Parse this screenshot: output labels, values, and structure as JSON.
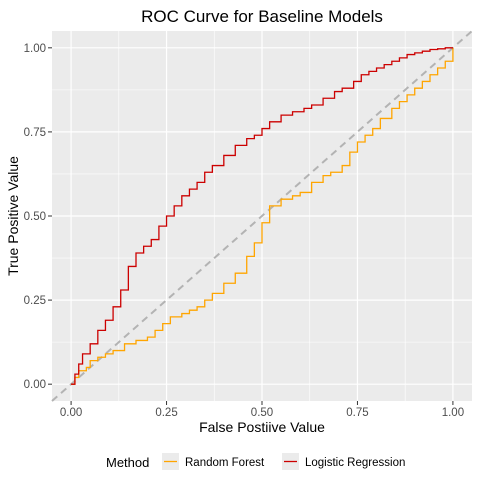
{
  "chart_data": {
    "type": "line",
    "title": "ROC Curve for Baseline Models",
    "xlabel": "False Postiive Value",
    "ylabel": "True Positive Value",
    "xlim": [
      -0.05,
      1.05
    ],
    "ylim": [
      -0.05,
      1.05
    ],
    "x_ticks": [
      0,
      0.25,
      0.5,
      0.75,
      1
    ],
    "y_ticks": [
      0,
      0.25,
      0.5,
      0.75,
      1
    ],
    "x_tick_labels": [
      "0.00",
      "0.25",
      "0.50",
      "0.75",
      "1.00"
    ],
    "y_tick_labels": [
      "0.00",
      "0.25",
      "0.50",
      "0.75",
      "1.00"
    ],
    "grid": true,
    "legend_position": "bottom",
    "legend_title": "Method",
    "reference_line": {
      "style": "dashed",
      "color": "#b3b3b3",
      "x": [
        -0.05,
        1.05
      ],
      "y": [
        -0.05,
        1.05
      ]
    },
    "series": [
      {
        "name": "Random Forest",
        "color": "#FFA500",
        "x": [
          0,
          0.01,
          0.02,
          0.04,
          0.05,
          0.07,
          0.09,
          0.11,
          0.14,
          0.17,
          0.2,
          0.22,
          0.24,
          0.26,
          0.29,
          0.31,
          0.33,
          0.35,
          0.37,
          0.4,
          0.43,
          0.46,
          0.48,
          0.5,
          0.52,
          0.55,
          0.58,
          0.6,
          0.63,
          0.66,
          0.68,
          0.71,
          0.73,
          0.75,
          0.77,
          0.79,
          0.81,
          0.84,
          0.86,
          0.88,
          0.9,
          0.92,
          0.94,
          0.96,
          0.98,
          1.0
        ],
        "y": [
          0,
          0.02,
          0.04,
          0.05,
          0.07,
          0.08,
          0.09,
          0.1,
          0.12,
          0.13,
          0.14,
          0.16,
          0.18,
          0.2,
          0.21,
          0.22,
          0.23,
          0.25,
          0.27,
          0.3,
          0.33,
          0.38,
          0.42,
          0.48,
          0.53,
          0.55,
          0.56,
          0.57,
          0.6,
          0.62,
          0.63,
          0.65,
          0.69,
          0.72,
          0.74,
          0.76,
          0.79,
          0.82,
          0.84,
          0.86,
          0.88,
          0.9,
          0.92,
          0.94,
          0.96,
          1.0
        ]
      },
      {
        "name": "Logistic Regression",
        "color": "#CC0000",
        "x": [
          0,
          0.01,
          0.02,
          0.03,
          0.05,
          0.07,
          0.09,
          0.11,
          0.13,
          0.15,
          0.17,
          0.19,
          0.21,
          0.23,
          0.25,
          0.27,
          0.29,
          0.31,
          0.33,
          0.35,
          0.37,
          0.4,
          0.43,
          0.46,
          0.48,
          0.5,
          0.52,
          0.55,
          0.58,
          0.61,
          0.63,
          0.66,
          0.69,
          0.71,
          0.74,
          0.76,
          0.78,
          0.8,
          0.82,
          0.84,
          0.86,
          0.88,
          0.9,
          0.92,
          0.94,
          0.96,
          0.98,
          1.0
        ],
        "y": [
          0,
          0.03,
          0.06,
          0.09,
          0.12,
          0.16,
          0.19,
          0.23,
          0.28,
          0.35,
          0.39,
          0.41,
          0.43,
          0.47,
          0.5,
          0.53,
          0.56,
          0.58,
          0.6,
          0.63,
          0.65,
          0.68,
          0.71,
          0.73,
          0.74,
          0.76,
          0.78,
          0.8,
          0.81,
          0.82,
          0.83,
          0.85,
          0.87,
          0.88,
          0.9,
          0.92,
          0.93,
          0.94,
          0.95,
          0.96,
          0.97,
          0.98,
          0.985,
          0.99,
          0.995,
          0.997,
          1.0,
          1.0
        ]
      }
    ]
  }
}
